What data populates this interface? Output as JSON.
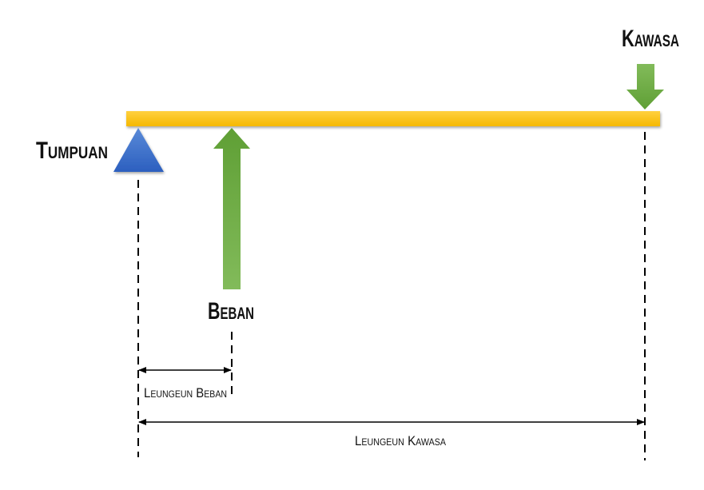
{
  "labels": {
    "support": "Tumpuan",
    "load": "Beban",
    "effort": "Kawasa",
    "load_arm": "Leungeun Beban",
    "effort_arm": "Leungeun Kawasa"
  },
  "colors": {
    "beam": "#fbbf0e",
    "support": "#3566c4",
    "arrow": "#64a63c",
    "line": "#000000"
  }
}
